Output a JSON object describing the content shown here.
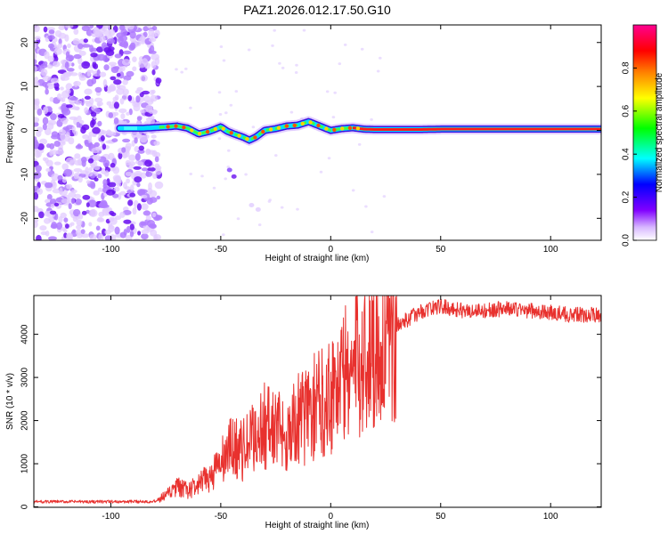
{
  "title": "PAZ1.2026.012.17.50.G10",
  "chart_data": [
    {
      "type": "heatmap",
      "xlabel": "Height of straight line (km)",
      "ylabel": "Frequency (Hz)",
      "xlim": [
        -135,
        123
      ],
      "ylim": [
        -25,
        24
      ],
      "xticks": [
        -100,
        -50,
        0,
        50,
        100
      ],
      "yticks": [
        -20,
        -10,
        0,
        10,
        20
      ],
      "xtick_labels": [
        "-100",
        "-50",
        "0",
        "50",
        "100"
      ],
      "ytick_labels": [
        "-20",
        "-10",
        "0",
        "10",
        "20"
      ],
      "frequency_track": {
        "x": [
          -95,
          -85,
          -75,
          -70,
          -65,
          -60,
          -55,
          -50,
          -47,
          -44,
          -40,
          -37,
          -34,
          -30,
          -25,
          -20,
          -15,
          -10,
          -5,
          0,
          5,
          10,
          15,
          20,
          30,
          40,
          50,
          60,
          80,
          100,
          123
        ],
        "y": [
          0.5,
          0.5,
          0.8,
          1.0,
          0.5,
          -0.8,
          -0.2,
          0.8,
          -0.2,
          -0.8,
          -1.5,
          -2.2,
          -1.5,
          0,
          0.4,
          1.0,
          1.2,
          2.0,
          1.0,
          0,
          0.4,
          0.6,
          0.3,
          0.2,
          0.2,
          0.2,
          0.3,
          0.3,
          0.3,
          0.3,
          0.3
        ]
      },
      "colorbar": {
        "label": "Normalized spectral amplitude",
        "range": [
          0,
          1
        ],
        "ticks": [
          0.0,
          0.2,
          0.4,
          0.6,
          0.8
        ],
        "tick_labels": [
          "0.0",
          "0.2",
          "0.4",
          "0.6",
          "0.8"
        ],
        "colors": [
          "#ffffff",
          "#c8a0ff",
          "#8000ff",
          "#0000ff",
          "#00ffff",
          "#00ff00",
          "#ffff00",
          "#ff8000",
          "#ff0000",
          "#ff0090"
        ]
      }
    },
    {
      "type": "line",
      "xlabel": "Height of straight line (km)",
      "ylabel": "SNR (10 * v/v)",
      "xlim": [
        -135,
        123
      ],
      "ylim": [
        -10,
        4900
      ],
      "xticks": [
        -100,
        -50,
        0,
        50,
        100
      ],
      "yticks": [
        0,
        1000,
        2000,
        3000,
        4000
      ],
      "xtick_labels": [
        "-100",
        "-50",
        "0",
        "50",
        "100"
      ],
      "ytick_labels": [
        "0",
        "1000",
        "2000",
        "3000",
        "4000"
      ],
      "series": [
        {
          "name": "SNR",
          "color": "#e8312e",
          "x": [
            -135,
            -110,
            -90,
            -80,
            -75,
            -70,
            -65,
            -60,
            -55,
            -50,
            -45,
            -40,
            -35,
            -30,
            -25,
            -20,
            -15,
            -10,
            -5,
            0,
            5,
            10,
            15,
            20,
            25,
            30,
            35,
            40,
            45,
            50,
            55,
            60,
            70,
            80,
            90,
            100,
            110,
            123
          ],
          "values": [
            120,
            120,
            120,
            130,
            250,
            450,
            380,
            500,
            700,
            1000,
            1400,
            1300,
            1600,
            1900,
            1800,
            1700,
            2000,
            2200,
            2400,
            2700,
            3000,
            3200,
            3500,
            3800,
            4000,
            4200,
            4350,
            4500,
            4600,
            4650,
            4600,
            4550,
            4550,
            4600,
            4550,
            4500,
            4450,
            4450
          ]
        }
      ]
    }
  ]
}
